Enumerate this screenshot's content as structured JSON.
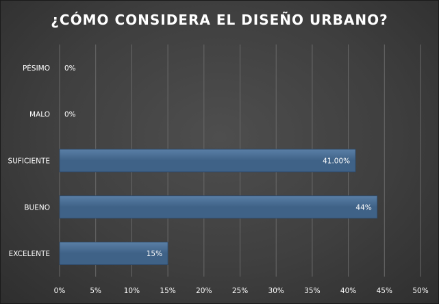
{
  "chart_data": {
    "type": "bar",
    "orientation": "horizontal",
    "title": "¿CÓMO CONSIDERA EL DISEÑO URBANO?",
    "categories": [
      "PÉSIMO",
      "MALO",
      "SUFICIENTE",
      "BUENO",
      "EXCELENTE"
    ],
    "values": [
      0,
      0,
      41,
      44,
      15
    ],
    "data_labels": [
      "0%",
      "0%",
      "41.00%",
      "44%",
      "15%"
    ],
    "xlim": [
      0,
      50
    ],
    "x_ticks": [
      "0%",
      "5%",
      "10%",
      "15%",
      "20%",
      "25%",
      "30%",
      "35%",
      "40%",
      "45%",
      "50%"
    ],
    "grid": true,
    "legend": "none",
    "colors": {
      "bar": "#3f6287",
      "bar_highlight": "#5a7fa6",
      "grid": "#6a6a6a",
      "text": "#ffffff"
    }
  }
}
